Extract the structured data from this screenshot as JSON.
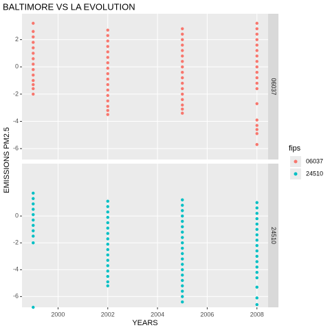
{
  "chart_data": {
    "type": "scatter",
    "title": "BALTIMORE VS LA EVOLUTION",
    "x_label": "YEARS",
    "y_label": "EMISSIONS PM2.5",
    "legend_title": "fips",
    "legend_position": "right",
    "grid": true,
    "xlim": [
      1998.55,
      2008.45
    ],
    "xticks": [
      2000,
      2002,
      2004,
      2006,
      2008
    ],
    "ylim": [
      -6.8,
      3.9
    ],
    "panels": [
      {
        "yticks": [
          2,
          0,
          -2,
          -4,
          -6
        ]
      },
      {
        "yticks": [
          0,
          -2,
          -4,
          -6
        ]
      }
    ],
    "series": [
      {
        "name": "06037",
        "color": "#F8766D",
        "x": [
          1999,
          1999,
          1999,
          1999,
          1999,
          1999,
          1999,
          1999,
          1999,
          1999,
          1999,
          1999,
          1999,
          1999,
          2002,
          2002,
          2002,
          2002,
          2002,
          2002,
          2002,
          2002,
          2002,
          2002,
          2002,
          2002,
          2002,
          2002,
          2002,
          2002,
          2002,
          2005,
          2005,
          2005,
          2005,
          2005,
          2005,
          2005,
          2005,
          2005,
          2005,
          2005,
          2005,
          2005,
          2005,
          2005,
          2005,
          2005,
          2008,
          2008,
          2008,
          2008,
          2008,
          2008,
          2008,
          2008,
          2008,
          2008,
          2008,
          2008,
          2008,
          2008,
          2008,
          2008,
          2008,
          2008,
          2008
        ],
        "values": [
          3.2,
          2.6,
          2.2,
          1.8,
          1.4,
          1.0,
          0.6,
          0.2,
          -0.2,
          -0.6,
          -1.0,
          -1.3,
          -1.6,
          -2.0,
          2.7,
          2.3,
          1.9,
          1.5,
          1.1,
          0.7,
          0.3,
          -0.1,
          -0.5,
          -0.9,
          -1.3,
          -1.7,
          -2.1,
          -2.5,
          -2.9,
          -3.2,
          -3.5,
          2.8,
          2.4,
          2.0,
          1.6,
          1.2,
          0.8,
          0.4,
          0,
          -0.4,
          -0.8,
          -1.2,
          -1.6,
          -2.0,
          -2.4,
          -2.8,
          -3.1,
          -3.4,
          3.2,
          2.8,
          2.4,
          2.0,
          1.6,
          1.2,
          0.8,
          0.4,
          0,
          -0.4,
          -0.8,
          -1.2,
          -1.6,
          -2.7,
          -3.9,
          -4.3,
          -4.6,
          -4.9,
          -5.7
        ]
      },
      {
        "name": "24510",
        "color": "#00BFC4",
        "x": [
          1999,
          1999,
          1999,
          1999,
          1999,
          1999,
          1999,
          1999,
          1999,
          1999,
          1999,
          2002,
          2002,
          2002,
          2002,
          2002,
          2002,
          2002,
          2002,
          2002,
          2002,
          2002,
          2002,
          2002,
          2002,
          2002,
          2002,
          2002,
          2005,
          2005,
          2005,
          2005,
          2005,
          2005,
          2005,
          2005,
          2005,
          2005,
          2005,
          2005,
          2005,
          2005,
          2005,
          2005,
          2005,
          2005,
          2005,
          2005,
          2008,
          2008,
          2008,
          2008,
          2008,
          2008,
          2008,
          2008,
          2008,
          2008,
          2008,
          2008,
          2008,
          2008,
          2008,
          2008,
          2008,
          2008
        ],
        "values": [
          1.7,
          1.3,
          0.9,
          0.5,
          0.1,
          -0.3,
          -0.7,
          -1.1,
          -1.5,
          -2.0,
          -6.8,
          1.1,
          0.7,
          0.3,
          -0.1,
          -0.5,
          -0.9,
          -1.3,
          -1.7,
          -2.1,
          -2.5,
          -2.9,
          -3.3,
          -3.7,
          -4.1,
          -4.5,
          -4.9,
          -5.2,
          1.2,
          0.8,
          0.4,
          0,
          -0.4,
          -0.8,
          -1.2,
          -1.6,
          -2.0,
          -2.4,
          -2.8,
          -3.2,
          -3.6,
          -4.0,
          -4.4,
          -4.8,
          -5.2,
          -5.6,
          -6.0,
          -6.4,
          1.0,
          0.6,
          0.2,
          -0.2,
          -0.6,
          -1.0,
          -1.4,
          -1.8,
          -2.2,
          -2.6,
          -3.0,
          -3.4,
          -3.8,
          -4.2,
          -4.6,
          -5.3,
          -6.1,
          -6.6
        ]
      }
    ]
  }
}
